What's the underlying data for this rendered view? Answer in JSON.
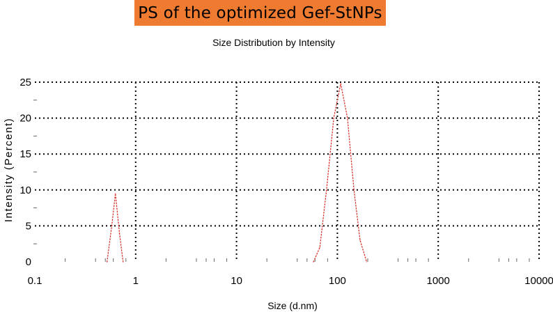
{
  "banner": {
    "text": "PS of the optimized Gef-StNPs",
    "background": "#ee7b30"
  },
  "chart_data": {
    "type": "line",
    "title": "Size Distribution by Intensity",
    "xlabel": "Size (d.nm)",
    "ylabel": "Intensity (Percent)",
    "x_scale": "log",
    "xlim": [
      0.1,
      10000
    ],
    "ylim": [
      0,
      25
    ],
    "x_ticks": [
      0.1,
      1,
      10,
      100,
      1000,
      10000
    ],
    "x_tick_labels": [
      "0.1",
      "1",
      "10",
      "100",
      "1000",
      "10000"
    ],
    "y_ticks": [
      0,
      5,
      10,
      15,
      20,
      25
    ],
    "y_tick_labels": [
      "0",
      "5",
      "10",
      "15",
      "20",
      "25"
    ],
    "grid": true,
    "line_color": "#d9342b",
    "line_style": "dotted",
    "series": [
      {
        "values": [
          [
            0.52,
            0
          ],
          [
            0.58,
            5
          ],
          [
            0.63,
            9.5
          ],
          [
            0.69,
            4
          ],
          [
            0.75,
            0
          ],
          [
            58,
            0
          ],
          [
            67,
            2
          ],
          [
            78,
            10
          ],
          [
            92,
            20
          ],
          [
            108,
            24.8
          ],
          [
            126,
            20
          ],
          [
            146,
            10
          ],
          [
            168,
            3
          ],
          [
            195,
            0
          ]
        ]
      }
    ]
  }
}
